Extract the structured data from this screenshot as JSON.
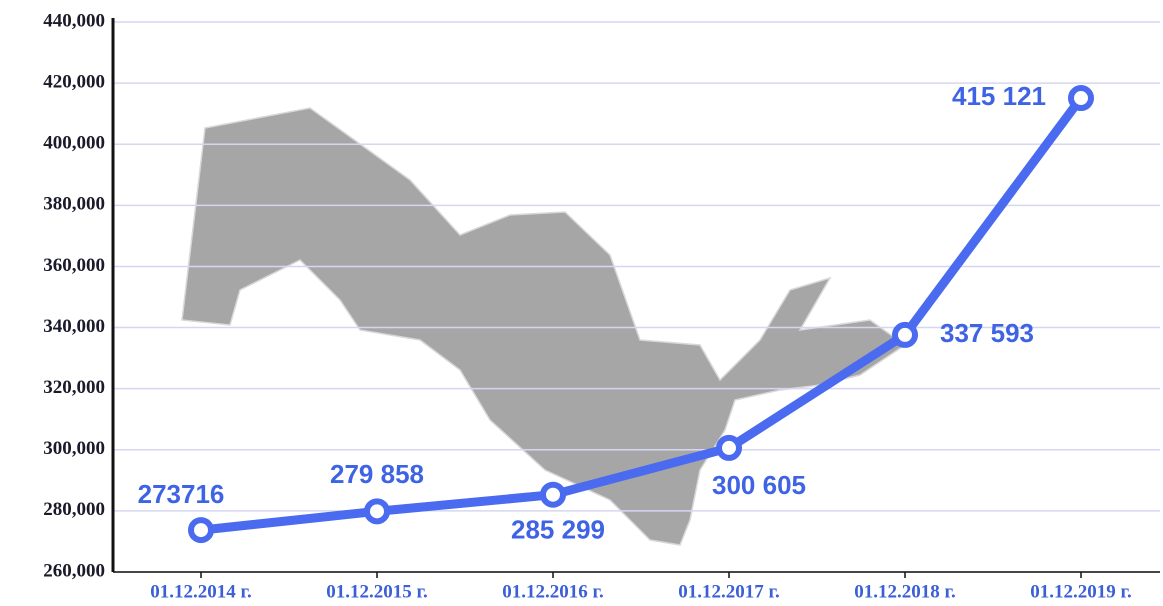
{
  "chart_data": {
    "type": "line",
    "categories": [
      "01.12.2014 г.",
      "01.12.2015 г.",
      "01.12.2016 г.",
      "01.12.2017 г.",
      "01.12.2018 г.",
      "01.12.2019 г."
    ],
    "series": [
      {
        "color": "#4a6af0",
        "values": [
          273716,
          279858,
          285299,
          300605,
          337593,
          415121
        ],
        "value_labels": [
          "273716",
          "279 858",
          "285 299",
          "300 605",
          "337 593",
          "415 121"
        ]
      }
    ],
    "ylim": [
      260000,
      440000
    ],
    "yticks": [
      {
        "value": 260000,
        "label": "260,000"
      },
      {
        "value": 280000,
        "label": "280,000"
      },
      {
        "value": 300000,
        "label": "300,000"
      },
      {
        "value": 320000,
        "label": "320,000"
      },
      {
        "value": 340000,
        "label": "340,000"
      },
      {
        "value": 360000,
        "label": "360,000"
      },
      {
        "value": 380000,
        "label": "380,000"
      },
      {
        "value": 400000,
        "label": "400,000"
      },
      {
        "value": 420000,
        "label": "420,000"
      },
      {
        "value": 440000,
        "label": "440,000"
      }
    ],
    "grid": true
  }
}
